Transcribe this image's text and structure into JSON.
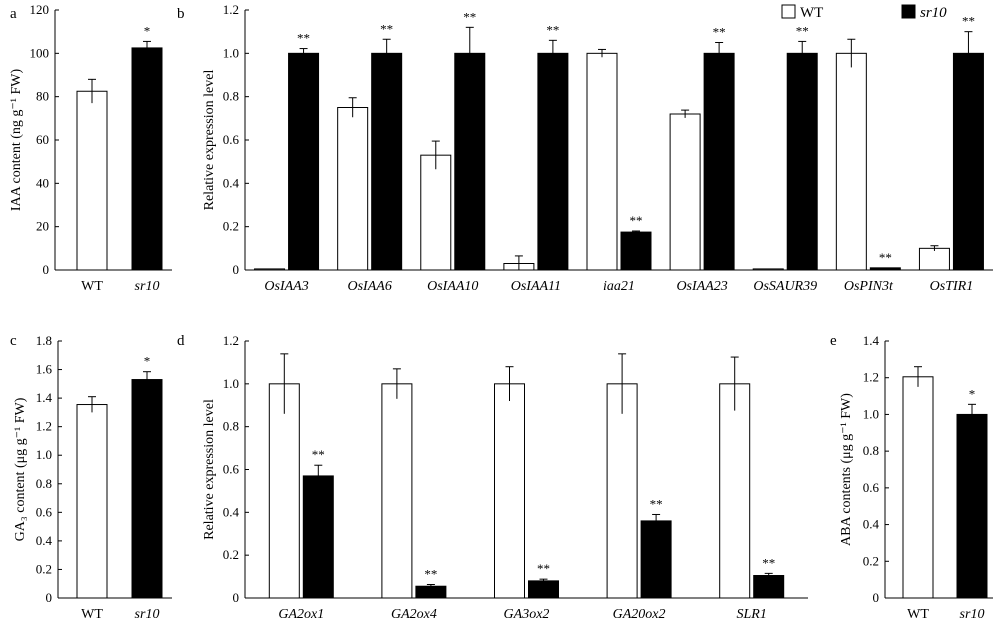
{
  "legend": {
    "wt_label": "WT",
    "mut_label": "sr10"
  },
  "chart_data": [
    {
      "id": "a",
      "type": "bar",
      "panel_label": "a",
      "ylabel": "IAA content (ng g⁻¹ FW)",
      "ylim": [
        0,
        120
      ],
      "yticks": [
        "0",
        "20",
        "40",
        "60",
        "80",
        "100",
        "120"
      ],
      "categories": [
        "WT",
        "sr10"
      ],
      "italic_categories": [
        false,
        true
      ],
      "colors": [
        "#ffffff",
        "#000000"
      ],
      "values": [
        82.5,
        102.5
      ],
      "errors": [
        5.5,
        3
      ],
      "significance": [
        "",
        "*"
      ]
    },
    {
      "id": "b",
      "type": "bar",
      "panel_label": "b",
      "ylabel": "Relative expression level",
      "ylim": [
        0,
        1.2
      ],
      "yticks": [
        "0",
        "0.2",
        "0.4",
        "0.6",
        "0.8",
        "1.0",
        "1.2"
      ],
      "italic_categories": true,
      "categories": [
        "OsIAA3",
        "OsIAA6",
        "OsIAA10",
        "OsIAA11",
        "iaa21",
        "OsIAA23",
        "OsSAUR39",
        "OsPIN3t",
        "OsTIR1"
      ],
      "series": [
        {
          "name": "WT",
          "color": "#ffffff",
          "values": [
            0.005,
            0.75,
            0.53,
            0.03,
            1.0,
            0.72,
            0.005,
            1.0,
            0.1
          ],
          "errors": [
            0,
            0.045,
            0.065,
            0.035,
            0.018,
            0.018,
            0,
            0.065,
            0.012
          ],
          "significance": [
            "",
            "",
            "",
            "",
            "",
            "",
            "",
            "",
            ""
          ]
        },
        {
          "name": "sr10",
          "color": "#000000",
          "values": [
            1.0,
            1.0,
            1.0,
            1.0,
            0.175,
            1.0,
            1.0,
            0.01,
            1.0
          ],
          "errors": [
            0.022,
            0.065,
            0.12,
            0.06,
            0.005,
            0.05,
            0.055,
            0,
            0.1
          ],
          "significance": [
            "**",
            "**",
            "**",
            "**",
            "**",
            "**",
            "**",
            "**",
            "**"
          ]
        }
      ]
    },
    {
      "id": "c",
      "type": "bar",
      "panel_label": "c",
      "ylabel": "GA₃ content (μg g⁻¹ FW)",
      "ylim": [
        0,
        1.8
      ],
      "yticks": [
        "0",
        "0.2",
        "0.4",
        "0.6",
        "0.8",
        "1.0",
        "1.2",
        "1.4",
        "1.6",
        "1.8"
      ],
      "categories": [
        "WT",
        "sr10"
      ],
      "italic_categories": [
        false,
        true
      ],
      "colors": [
        "#ffffff",
        "#000000"
      ],
      "values": [
        1.355,
        1.53
      ],
      "errors": [
        0.055,
        0.055
      ],
      "significance": [
        "",
        "*"
      ]
    },
    {
      "id": "d",
      "type": "bar",
      "panel_label": "d",
      "ylabel": "Relative expression level",
      "ylim": [
        0,
        1.2
      ],
      "yticks": [
        "0",
        "0.2",
        "0.4",
        "0.6",
        "0.8",
        "1.0",
        "1.2"
      ],
      "italic_categories": true,
      "categories": [
        "GA2ox1",
        "GA2ox4",
        "GA3ox2",
        "GA20ox2",
        "SLR1"
      ],
      "series": [
        {
          "name": "WT",
          "color": "#ffffff",
          "values": [
            1.0,
            1.0,
            1.0,
            1.0,
            1.0
          ],
          "errors": [
            0.14,
            0.07,
            0.08,
            0.14,
            0.125
          ],
          "significance": [
            "",
            "",
            "",
            "",
            ""
          ]
        },
        {
          "name": "sr10",
          "color": "#000000",
          "values": [
            0.57,
            0.055,
            0.08,
            0.36,
            0.105
          ],
          "errors": [
            0.05,
            0.008,
            0.008,
            0.03,
            0.01
          ],
          "significance": [
            "**",
            "**",
            "**",
            "**",
            "**"
          ]
        }
      ]
    },
    {
      "id": "e",
      "type": "bar",
      "panel_label": "e",
      "ylabel": "ABA contents (μg g⁻¹ FW)",
      "ylim": [
        0,
        1.4
      ],
      "yticks": [
        "0",
        "0.2",
        "0.4",
        "0.6",
        "0.8",
        "1.0",
        "1.2",
        "1.4"
      ],
      "categories": [
        "WT",
        "sr10"
      ],
      "italic_categories": [
        false,
        true
      ],
      "colors": [
        "#ffffff",
        "#000000"
      ],
      "values": [
        1.205,
        1.0
      ],
      "errors": [
        0.055,
        0.055
      ],
      "significance": [
        "",
        "*"
      ]
    }
  ]
}
